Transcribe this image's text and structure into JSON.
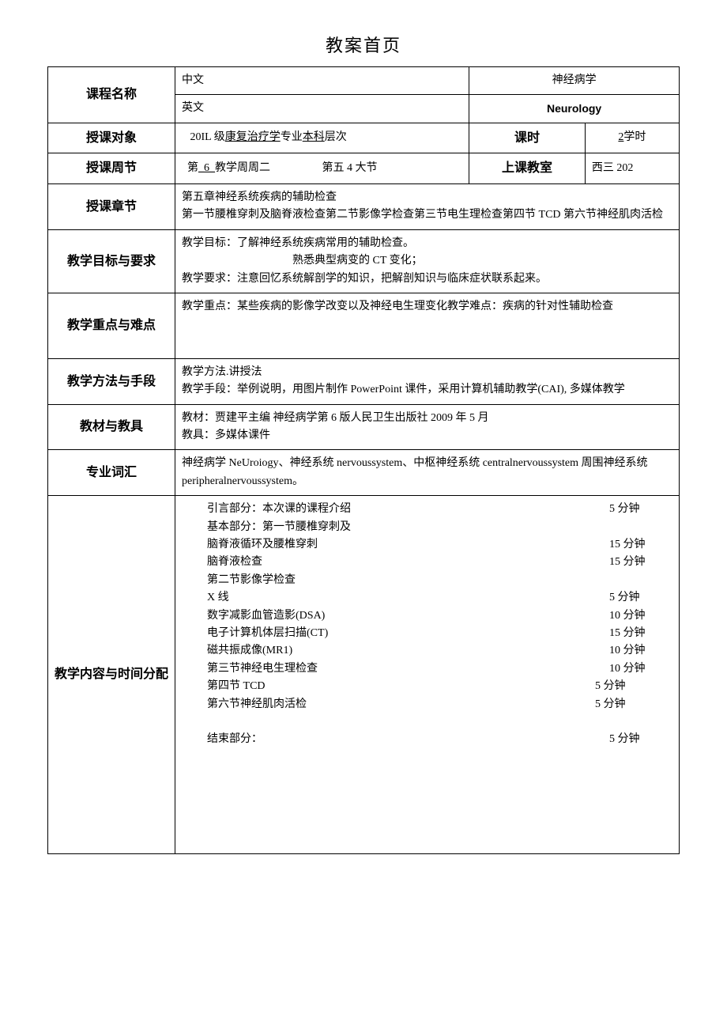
{
  "page_title": "教案首页",
  "rows": {
    "course_name": {
      "label": "课程名称",
      "zh_label": "中文",
      "zh_value": "神经病学",
      "en_label": "英文",
      "en_value": "Neurology"
    },
    "audience": {
      "label": "授课对象",
      "value_pre": "20IL 级",
      "value_u1": "康复治疗学",
      "value_mid": "专业",
      "value_u2": "本科",
      "value_post": "层次",
      "keshi_label": "课时",
      "keshi_u": "2",
      "keshi_post": "学时"
    },
    "week": {
      "label": "授课周节",
      "value_pre": "第",
      "value_u": "_6_",
      "value_mid": "教学周周二",
      "value_right": "第五 4 大节",
      "room_label": "上课教室",
      "room_value": "西三 202"
    },
    "chapter": {
      "label": "授课章节",
      "line1": "第五章神经系统疾病的辅助检查",
      "line2": "第一节腰椎穿刺及脑脊液检查第二节影像学检查第三节电生理检查第四节 TCD 第六节神经肌肉活检"
    },
    "goal": {
      "label": "教学目标与要求",
      "line1": "教学目标：了解神经系统疾病常用的辅助检查。",
      "line2": "熟悉典型病变的 CT 变化；",
      "line3": "教学要求：注意回忆系统解剖学的知识，把解剖知识与临床症状联系起来。"
    },
    "keypoint": {
      "label": "教学重点与难点",
      "line1": "教学重点：某些疾病的影像学改变以及神经电生理变化教学难点：疾病的针对性辅助检查"
    },
    "method": {
      "label": "教学方法与手段",
      "line1": "教学方法.讲授法",
      "line2": "教学手段：举例说明，用图片制作 PowerPoint 课件，采用计算机辅助教学(CAI), 多媒体教学"
    },
    "textbook": {
      "label": "教材与教具",
      "line1": "教材：贾建平主编        神经病学第 6 版人民卫生出版社 2009 年 5 月",
      "line2": "教具：多媒体课件"
    },
    "vocab": {
      "label": "专业词汇",
      "line1": "神经病学 NeUroiogy、神经系统 nervoussystem、中枢神经系统 centralnervoussystem 周围神经系统 peripheralnervoussystem。"
    },
    "schedule": {
      "label": "教学内容与时间分配",
      "items": [
        {
          "text": "引言部分：本次课的课程介绍",
          "time": "5 分钟"
        },
        {
          "text": "基本部分：第一节腰椎穿刺及",
          "time": ""
        },
        {
          "text": "脑脊液循环及腰椎穿刺",
          "time": "15 分钟"
        },
        {
          "text": "脑脊液检查",
          "time": "15 分钟"
        },
        {
          "text": "第二节影像学检查",
          "time": ""
        },
        {
          "text": "X 线",
          "time": "5 分钟"
        },
        {
          "text": "数字减影血管造影(DSA)",
          "time": "10 分钟"
        },
        {
          "text": "电子计算机体层扫描(CT)",
          "time": "15 分钟"
        },
        {
          "text": "磁共振成像(MR1)",
          "time": "10 分钟"
        },
        {
          "text": "第三节神经电生理检查",
          "time": "10 分钟"
        },
        {
          "text": "第四节 TCD",
          "time": "5 分钟",
          "time_shift": true
        },
        {
          "text": "第六节神经肌肉活检",
          "time": "5 分钟",
          "time_shift": true
        },
        {
          "text": "",
          "time": ""
        },
        {
          "text": "结束部分：",
          "time": "5 分钟"
        }
      ]
    }
  }
}
